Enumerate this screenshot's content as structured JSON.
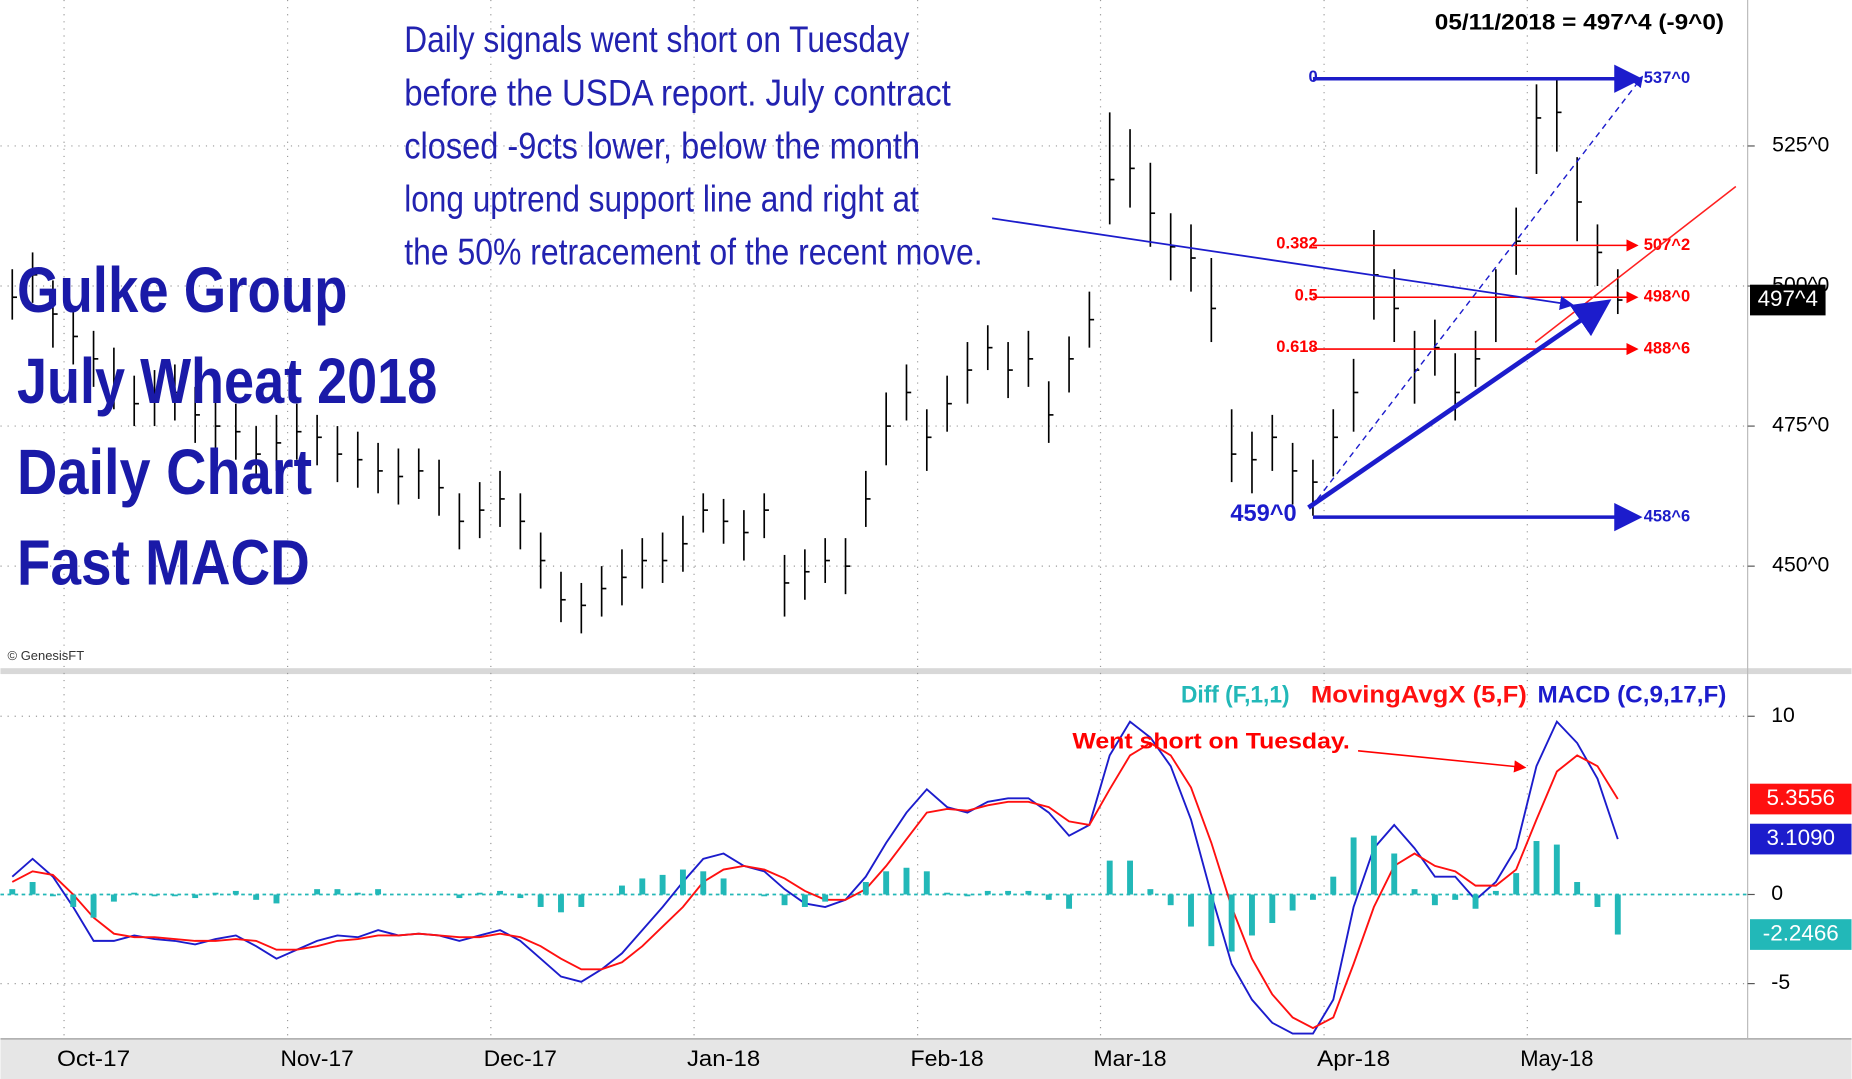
{
  "chart_data": [
    {
      "type": "hlc",
      "title_lines": [
        "Gulke Group",
        "July Wheat 2018",
        "Daily Chart",
        "Fast MACD"
      ],
      "note_lines": [
        "Daily signals went short on Tuesday",
        "before the USDA report.   July contract",
        "closed -9cts lower,  below the month",
        "long uptrend support line and right at",
        "the 50% retracement of the recent move."
      ],
      "header": "05/11/2018 = 497^4 (-9^0)",
      "credit": "© GenesisFT",
      "color": "#000000",
      "categories": [
        null,
        null,
        null,
        null,
        "Oct-17",
        null,
        null,
        null,
        null,
        null,
        null,
        null,
        null,
        null,
        null,
        "Nov-17",
        null,
        null,
        null,
        null,
        null,
        null,
        null,
        null,
        null,
        "Dec-17",
        null,
        null,
        null,
        null,
        null,
        null,
        null,
        null,
        null,
        "Jan-18",
        null,
        null,
        null,
        null,
        null,
        null,
        null,
        null,
        null,
        null,
        "Feb-18",
        null,
        null,
        null,
        null,
        null,
        null,
        null,
        null,
        "Mar-18",
        null,
        null,
        null,
        null,
        null,
        null,
        null,
        null,
        null,
        null,
        "Apr-18",
        null,
        null,
        null,
        null,
        null,
        null,
        null,
        null,
        null,
        "May-18",
        null,
        null,
        null
      ],
      "high": [
        503,
        506,
        501,
        496,
        492,
        489,
        484,
        485,
        486,
        482,
        480,
        479,
        475,
        477,
        479,
        477,
        475,
        474,
        472,
        471,
        471,
        469,
        463,
        465,
        467,
        463,
        456,
        449,
        447,
        450,
        453,
        455,
        456,
        459,
        463,
        462,
        460,
        463,
        452,
        453,
        455,
        455,
        467,
        481,
        486,
        478,
        484,
        490,
        493,
        490,
        492,
        483,
        491,
        499,
        531,
        528,
        522,
        513,
        511,
        505,
        478,
        474,
        477,
        472,
        469,
        478,
        487,
        510,
        503,
        492,
        494,
        488,
        492,
        503,
        514,
        536,
        537,
        523,
        511,
        503
      ],
      "low": [
        494,
        497,
        489,
        486,
        482,
        478,
        475,
        475,
        476,
        472,
        471,
        469,
        466,
        467,
        469,
        468,
        465,
        464,
        463,
        461,
        462,
        459,
        453,
        455,
        457,
        453,
        446,
        440,
        438,
        441,
        443,
        446,
        447,
        449,
        456,
        454,
        451,
        455,
        441,
        444,
        447,
        445,
        457,
        468,
        476,
        467,
        474,
        479,
        485,
        480,
        482,
        472,
        481,
        489,
        511,
        514,
        507,
        501,
        499,
        490,
        465,
        463,
        467,
        461,
        459,
        466,
        474,
        494,
        490,
        479,
        484,
        476,
        482,
        490,
        502,
        520,
        524,
        508,
        500,
        495
      ],
      "close": [
        498,
        502,
        495,
        491,
        487,
        483,
        479,
        480,
        481,
        477,
        475,
        474,
        470,
        472,
        474,
        473,
        470,
        469,
        467,
        466,
        467,
        464,
        458,
        460,
        462,
        458,
        451,
        444,
        443,
        446,
        448,
        451,
        451,
        454,
        460,
        458,
        456,
        460,
        447,
        449,
        451,
        450,
        462,
        475,
        481,
        473,
        479,
        485,
        489,
        485,
        487,
        477,
        487,
        494,
        519,
        521,
        513,
        507,
        505,
        496,
        470,
        469,
        473,
        467,
        465,
        473,
        481,
        502,
        496,
        485,
        489,
        481,
        487,
        498,
        508,
        530,
        531,
        515,
        506,
        497.5
      ],
      "ylim": [
        432,
        550
      ],
      "yticks": [
        {
          "value": 450,
          "label": "450^0"
        },
        {
          "value": 475,
          "label": "475^0"
        },
        {
          "value": 500,
          "label": "500^0"
        },
        {
          "value": 525,
          "label": "525^0"
        }
      ],
      "grid": true,
      "last_price": {
        "value": 497.5,
        "label": "497^4"
      },
      "fib_levels": [
        {
          "ratio": "0",
          "value": 537,
          "label": "537^0",
          "color": "#1c1cc8"
        },
        {
          "ratio": "0.382",
          "value": 507.25,
          "label": "507^2",
          "color": "#ff0000"
        },
        {
          "ratio": "0.5",
          "value": 498,
          "label": "498^0",
          "color": "#ff0000"
        },
        {
          "ratio": "0.618",
          "value": 488.75,
          "label": "488^6",
          "color": "#ff0000"
        },
        {
          "ratio": null,
          "value": 458.75,
          "label": "458^6",
          "color": "#1c1cc8"
        }
      ],
      "low_label": {
        "value": 459,
        "label": "459^0"
      }
    },
    {
      "type": "line",
      "annotation": "Went short on Tuesday.",
      "ylim": [
        -8.1,
        12.3
      ],
      "yticks": [
        -5,
        0,
        10
      ],
      "grid": true,
      "series": [
        {
          "name": "MACD (C,9,17,F)",
          "color": "#1c1ccc",
          "values": [
            1.0,
            2.0,
            1.0,
            -0.7,
            -2.6,
            -2.6,
            -2.3,
            -2.5,
            -2.6,
            -2.8,
            -2.5,
            -2.3,
            -2.9,
            -3.6,
            -3.1,
            -2.6,
            -2.3,
            -2.4,
            -2.0,
            -2.3,
            -2.2,
            -2.3,
            -2.6,
            -2.3,
            -2.0,
            -2.6,
            -3.6,
            -4.6,
            -4.9,
            -4.2,
            -3.3,
            -2.0,
            -0.7,
            0.7,
            2.0,
            2.3,
            1.6,
            1.3,
            0.3,
            -0.5,
            -0.7,
            -0.3,
            1.0,
            2.9,
            4.6,
            5.9,
            4.9,
            4.6,
            5.2,
            5.4,
            5.4,
            4.6,
            3.3,
            3.9,
            7.8,
            9.7,
            8.8,
            7.2,
            4.2,
            0.0,
            -3.9,
            -5.9,
            -7.2,
            -7.8,
            -7.8,
            -5.9,
            -0.7,
            2.6,
            3.9,
            2.6,
            1.0,
            1.0,
            -0.3,
            0.7,
            2.6,
            7.2,
            9.7,
            8.5,
            6.5,
            3.109
          ],
          "value_labels": [
            null,
            null,
            null,
            null,
            null,
            null,
            null,
            null,
            null,
            null,
            null,
            null,
            null,
            null,
            null,
            null,
            null,
            null,
            null,
            null,
            null,
            null,
            null,
            null,
            null,
            null,
            null,
            null,
            null,
            null,
            null,
            null,
            null,
            null,
            null,
            null,
            null,
            null,
            null,
            null,
            null,
            null,
            null,
            null,
            null,
            null,
            null,
            null,
            null,
            null,
            null,
            null,
            null,
            null,
            null,
            null,
            null,
            null,
            null,
            null,
            null,
            null,
            null,
            null,
            null,
            null,
            null,
            null,
            null,
            null,
            null,
            null,
            null,
            null,
            null,
            null,
            null,
            null,
            null,
            "3.1090"
          ]
        },
        {
          "name": "MovingAvgX (5,F)",
          "color": "#ff1010",
          "values": [
            0.7,
            1.3,
            1.1,
            0,
            -1.3,
            -2.2,
            -2.4,
            -2.4,
            -2.5,
            -2.6,
            -2.6,
            -2.5,
            -2.6,
            -3.1,
            -3.1,
            -2.9,
            -2.6,
            -2.5,
            -2.3,
            -2.3,
            -2.2,
            -2.3,
            -2.4,
            -2.4,
            -2.2,
            -2.4,
            -2.9,
            -3.6,
            -4.2,
            -4.2,
            -3.8,
            -2.9,
            -1.8,
            -0.7,
            0.7,
            1.4,
            1.6,
            1.4,
            0.9,
            0.2,
            -0.3,
            -0.3,
            0.3,
            1.6,
            3.1,
            4.6,
            4.8,
            4.7,
            5.0,
            5.2,
            5.2,
            4.9,
            4.1,
            3.9,
            5.9,
            7.8,
            8.5,
            7.8,
            6.0,
            2.9,
            -0.7,
            -3.6,
            -5.6,
            -6.9,
            -7.5,
            -6.9,
            -3.9,
            -0.7,
            1.6,
            2.3,
            1.6,
            1.3,
            0.5,
            0.5,
            1.4,
            4.2,
            6.9,
            7.8,
            7.2,
            5.3556
          ]
        },
        {
          "name": "Diff (F,1,1)",
          "color": "#22b8b8",
          "style": "histogram",
          "values": [
            0.3,
            0.7,
            -0.1,
            -0.7,
            -1.3,
            -0.4,
            0.1,
            -0.1,
            -0.1,
            -0.2,
            0.1,
            0.2,
            -0.3,
            -0.5,
            0,
            0.3,
            0.3,
            0.1,
            0.3,
            0,
            0,
            0,
            -0.2,
            0.1,
            0.2,
            -0.2,
            -0.7,
            -1.0,
            -0.7,
            0,
            0.5,
            0.9,
            1.1,
            1.4,
            1.3,
            0.9,
            0,
            -0.1,
            -0.6,
            -0.7,
            -0.4,
            0,
            0.7,
            1.3,
            1.5,
            1.3,
            0.1,
            -0.1,
            0.2,
            0.2,
            0.2,
            -0.3,
            -0.8,
            0,
            1.9,
            1.9,
            0.3,
            -0.6,
            -1.8,
            -2.9,
            -3.2,
            -2.3,
            -1.6,
            -0.9,
            -0.3,
            1.0,
            3.2,
            3.3,
            2.3,
            0.3,
            -0.6,
            -0.3,
            -0.8,
            0.2,
            1.2,
            3.0,
            2.8,
            0.7,
            -0.7,
            -2.2466
          ]
        }
      ]
    }
  ]
}
